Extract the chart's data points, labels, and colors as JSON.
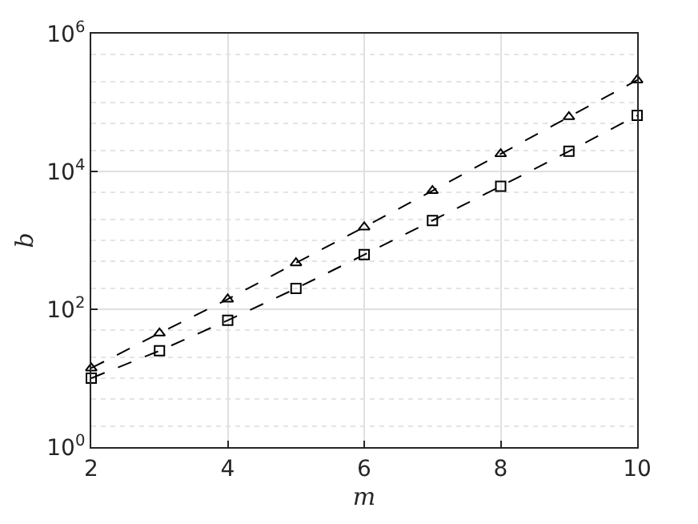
{
  "chart_data": {
    "type": "line",
    "xlabel": "m",
    "ylabel": "b",
    "log": "y",
    "grid": true,
    "line_style": "dashed",
    "x": [
      2,
      3,
      4,
      5,
      6,
      7,
      8,
      9,
      10
    ],
    "xlim": [
      2,
      10
    ],
    "xticks": [
      2,
      4,
      6,
      8,
      10
    ],
    "ylim": [
      1,
      1000000
    ],
    "yticks": [
      {
        "value": 1,
        "label": "10$^{0}$"
      },
      {
        "value": 100,
        "label": "10$^{2}$"
      },
      {
        "value": 10000,
        "label": "10$^{4}$"
      },
      {
        "value": 1000000,
        "label": "10$^{6}$"
      }
    ],
    "series": [
      {
        "color": "#000000",
        "marker": "triangle",
        "values": [
          14,
          45,
          140,
          470,
          1560,
          5250,
          18000,
          62000,
          212000
        ]
      },
      {
        "color": "#000000",
        "marker": "square",
        "values": [
          10,
          25,
          69,
          200,
          620,
          1940,
          6100,
          19600,
          65000
        ]
      }
    ]
  }
}
